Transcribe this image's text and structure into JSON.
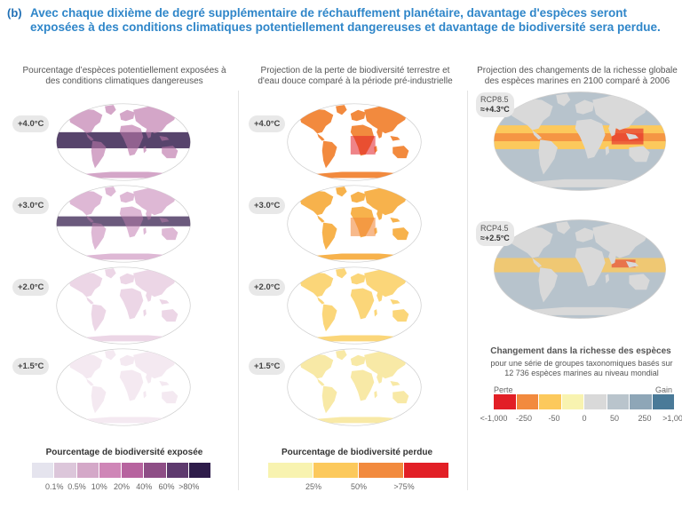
{
  "header": {
    "tag": "(b)",
    "title": "Avec chaque dixième de degré supplémentaire de réchauffement planétaire, davantage d'espèces seront exposées à des conditions climatiques potentiellement dangereuses et davantage de biodiversité sera perdue."
  },
  "columns": {
    "exposure": {
      "title": "Pourcentage d’espèces potentiellement exposées à des conditions climatiques dangereuses"
    },
    "loss": {
      "title": "Projection de la perte de biodiversité terrestre et d'eau douce comparé à la période pré-industrielle"
    },
    "marine": {
      "title": "Projection des changements de la richesse globale des espèces marines en 2100 comparé à 2006"
    }
  },
  "levels": [
    "+4.0°C",
    "+3.0°C",
    "+2.0°C",
    "+1.5°C"
  ],
  "marine_scenarios": [
    {
      "scenario": "RCP8.5",
      "level": "≈+4.3°C"
    },
    {
      "scenario": "RCP4.5",
      "level": "≈+2.5°C"
    }
  ],
  "legend_exposure": {
    "title": "Pourcentage de biodiversité exposée",
    "colors": [
      "#e5e4ee",
      "#dcc6da",
      "#d4a8c8",
      "#cf86b7",
      "#b7639f",
      "#8e4e86",
      "#5e3a6e",
      "#2e1c4a"
    ],
    "ticks": [
      "0.1%",
      "0.5%",
      "10%",
      "20%",
      "40%",
      "60%",
      ">80%"
    ]
  },
  "legend_loss": {
    "title": "Pourcentage de biodiversité perdue",
    "colors": [
      "#f8f3b0",
      "#fcc95c",
      "#f28a3e",
      "#e21f26"
    ],
    "ticks": [
      "25%",
      "50%",
      ">75%"
    ]
  },
  "legend_marine": {
    "title": "Changement dans la richesse des espèces",
    "subtitle": "pour une série de groupes taxonomiques basés sur 12 736 espèces marines au niveau mondial",
    "end_left": "Perte",
    "end_right": "Gain",
    "colors": [
      "#e21f26",
      "#f28a3e",
      "#fcc95c",
      "#f8f3b0",
      "#d9d9d9",
      "#b9c4cc",
      "#8ea6b7",
      "#4a7a98"
    ],
    "ticks": [
      "<-1,000",
      "-250",
      "-50",
      "0",
      "50",
      "250",
      ">1,000"
    ]
  }
}
